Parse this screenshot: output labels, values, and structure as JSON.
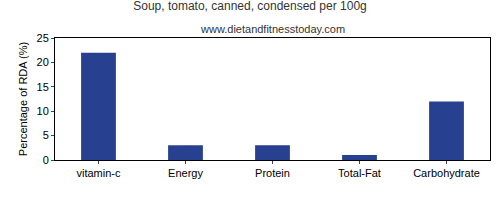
{
  "chart_data": {
    "type": "bar",
    "title": "Soup, tomato, canned, condensed per 100g",
    "subtitle": "www.dietandfitnesstoday.com",
    "y_label": "Percentage of RDA (%)",
    "categories": [
      "vitamin-c",
      "Energy",
      "Protein",
      "Total-Fat",
      "Carbohydrate"
    ],
    "values": [
      22,
      3,
      3,
      1,
      12
    ],
    "color": "#27408f",
    "ylim": [
      0,
      25
    ],
    "yticks": [
      0,
      5,
      10,
      15,
      20,
      25
    ],
    "grid": false
  }
}
